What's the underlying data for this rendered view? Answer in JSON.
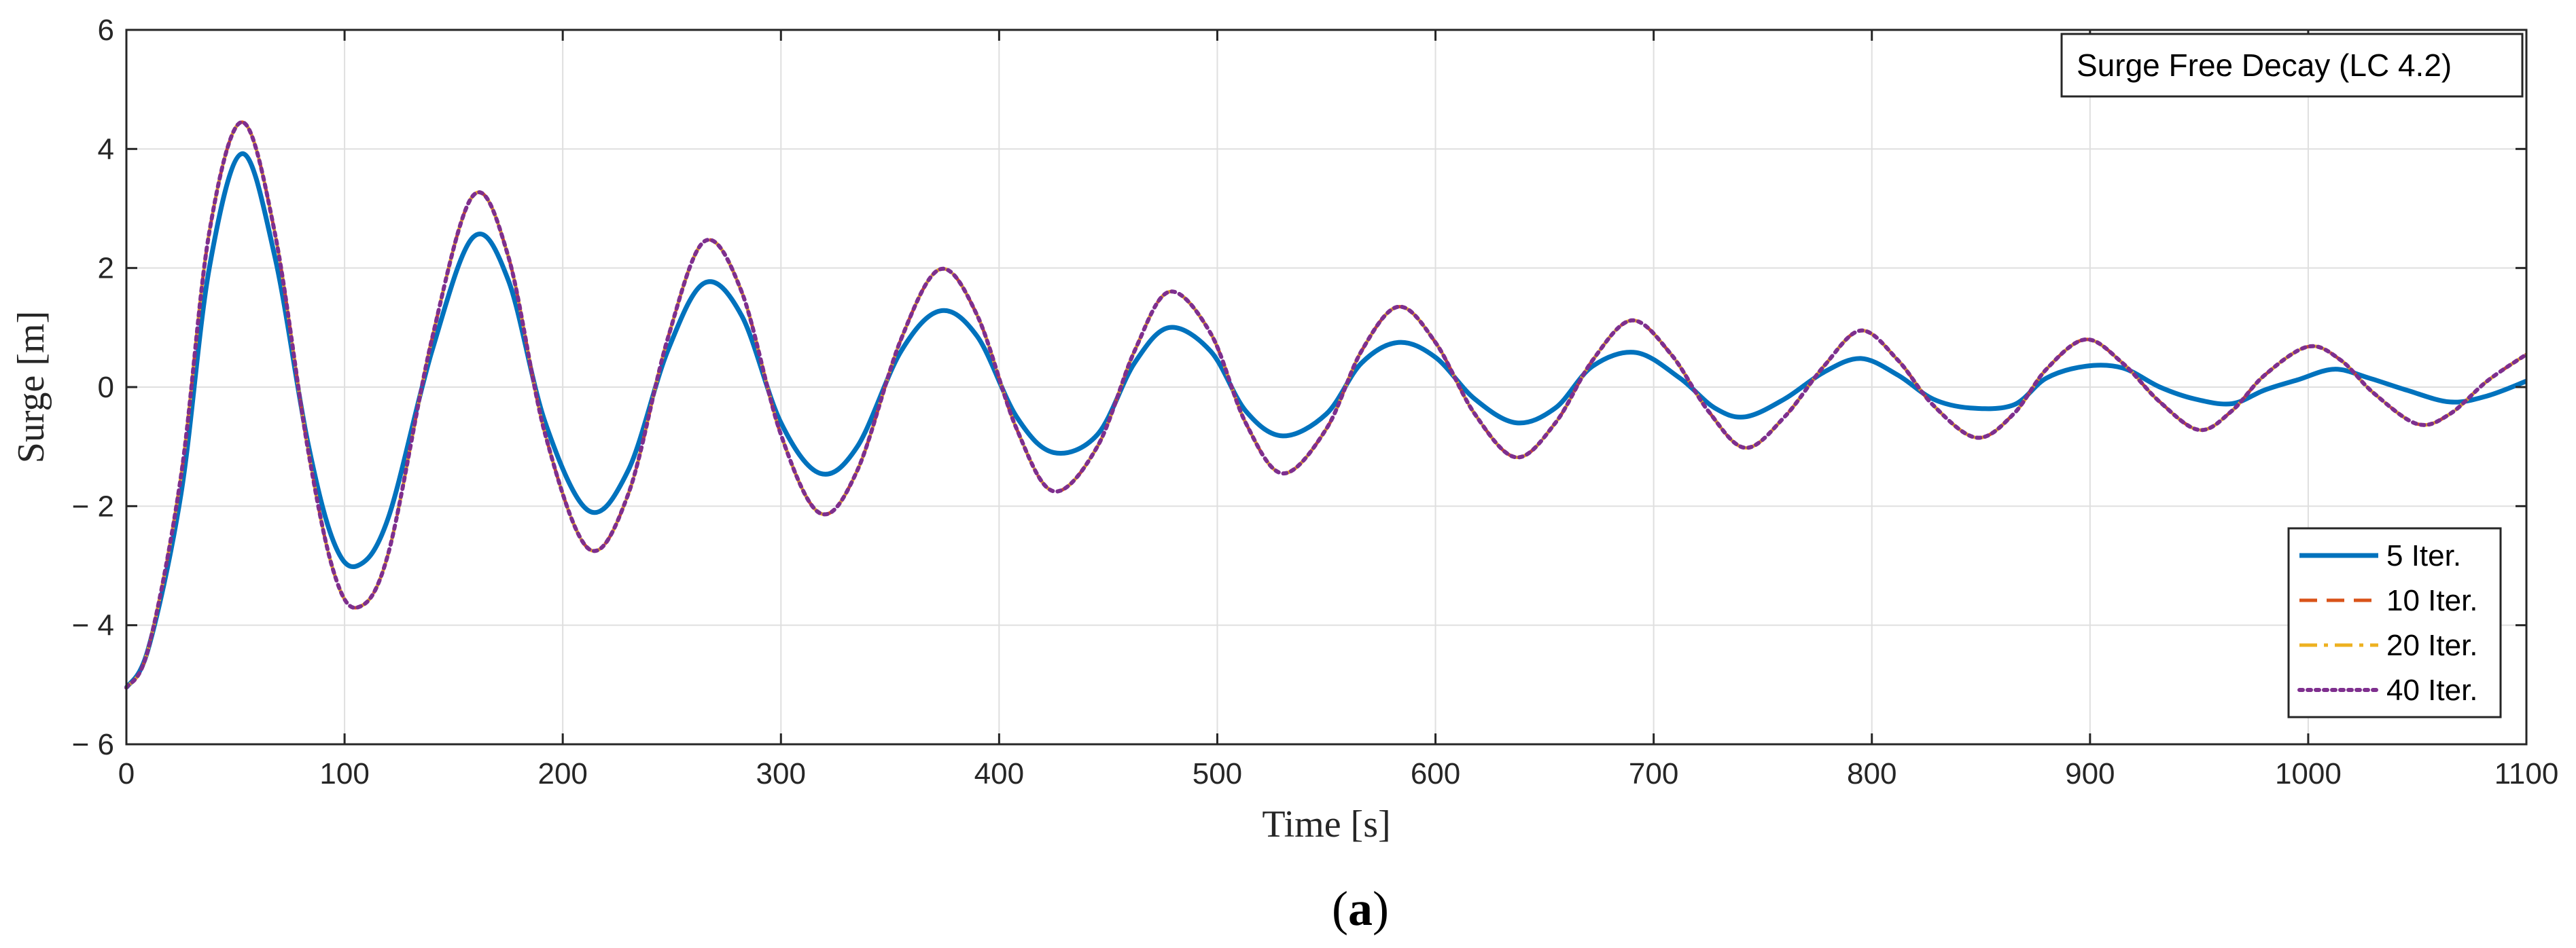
{
  "chart_data": {
    "type": "line",
    "title": "Surge Free Decay (LC 4.2)",
    "xlabel": "Time [s]",
    "ylabel": "Surge [m]",
    "xlim": [
      0,
      1100
    ],
    "ylim": [
      -6,
      6
    ],
    "xticks": [
      0,
      100,
      200,
      300,
      400,
      500,
      600,
      700,
      800,
      900,
      1000,
      1100
    ],
    "yticks": [
      6,
      4,
      2,
      0,
      -2,
      -4,
      -6
    ],
    "ytick_labels": [
      "6",
      "4",
      "2",
      "0",
      "− 2",
      "− 4",
      "− 6"
    ],
    "grid": true,
    "legend_position": "bottom-right",
    "caption_open": "(",
    "caption_letter": "a",
    "caption_close": ")",
    "series": [
      {
        "name": "5 Iter.",
        "color": "#0072BD",
        "style": "solid",
        "points": [
          [
            0,
            -5.05
          ],
          [
            10,
            -4.4
          ],
          [
            25,
            -1.8
          ],
          [
            38,
            2.0
          ],
          [
            53,
            3.92
          ],
          [
            68,
            2.2
          ],
          [
            83,
            -0.9
          ],
          [
            95,
            -2.6
          ],
          [
            106,
            -3.0
          ],
          [
            120,
            -2.2
          ],
          [
            140,
            0.6
          ],
          [
            159,
            2.52
          ],
          [
            175,
            1.8
          ],
          [
            192,
            -0.6
          ],
          [
            212,
            -2.08
          ],
          [
            230,
            -1.4
          ],
          [
            248,
            0.6
          ],
          [
            265,
            1.75
          ],
          [
            282,
            1.2
          ],
          [
            300,
            -0.6
          ],
          [
            318,
            -1.45
          ],
          [
            335,
            -1.0
          ],
          [
            355,
            0.6
          ],
          [
            373,
            1.28
          ],
          [
            390,
            0.85
          ],
          [
            408,
            -0.5
          ],
          [
            425,
            -1.1
          ],
          [
            445,
            -0.8
          ],
          [
            462,
            0.4
          ],
          [
            478,
            1.0
          ],
          [
            497,
            0.6
          ],
          [
            513,
            -0.4
          ],
          [
            530,
            -0.82
          ],
          [
            550,
            -0.45
          ],
          [
            566,
            0.4
          ],
          [
            583,
            0.75
          ],
          [
            600,
            0.5
          ],
          [
            618,
            -0.2
          ],
          [
            637,
            -0.6
          ],
          [
            655,
            -0.35
          ],
          [
            672,
            0.35
          ],
          [
            692,
            0.58
          ],
          [
            712,
            0.15
          ],
          [
            728,
            -0.35
          ],
          [
            742,
            -0.5
          ],
          [
            760,
            -0.2
          ],
          [
            778,
            0.25
          ],
          [
            795,
            0.48
          ],
          [
            812,
            0.2
          ],
          [
            828,
            -0.2
          ],
          [
            845,
            -0.35
          ],
          [
            865,
            -0.3
          ],
          [
            880,
            0.15
          ],
          [
            898,
            0.35
          ],
          [
            915,
            0.32
          ],
          [
            932,
            0.0
          ],
          [
            948,
            -0.2
          ],
          [
            965,
            -0.28
          ],
          [
            980,
            -0.05
          ],
          [
            995,
            0.12
          ],
          [
            1012,
            0.3
          ],
          [
            1028,
            0.15
          ],
          [
            1045,
            -0.05
          ],
          [
            1065,
            -0.25
          ],
          [
            1082,
            -0.15
          ],
          [
            1100,
            0.1
          ]
        ]
      },
      {
        "name": "10 Iter.",
        "color": "#D95319",
        "style": "dashed",
        "points": [
          [
            0,
            -5.05
          ],
          [
            10,
            -4.4
          ],
          [
            25,
            -1.5
          ],
          [
            38,
            2.6
          ],
          [
            53,
            4.45
          ],
          [
            68,
            2.6
          ],
          [
            83,
            -1.0
          ],
          [
            95,
            -3.1
          ],
          [
            106,
            -3.7
          ],
          [
            120,
            -2.8
          ],
          [
            140,
            0.8
          ],
          [
            159,
            3.22
          ],
          [
            175,
            2.2
          ],
          [
            192,
            -0.8
          ],
          [
            212,
            -2.72
          ],
          [
            230,
            -1.8
          ],
          [
            248,
            0.8
          ],
          [
            265,
            2.45
          ],
          [
            282,
            1.6
          ],
          [
            300,
            -0.8
          ],
          [
            318,
            -2.12
          ],
          [
            335,
            -1.4
          ],
          [
            355,
            0.8
          ],
          [
            373,
            1.98
          ],
          [
            390,
            1.2
          ],
          [
            408,
            -0.7
          ],
          [
            425,
            -1.75
          ],
          [
            445,
            -1.0
          ],
          [
            462,
            0.6
          ],
          [
            478,
            1.6
          ],
          [
            497,
            0.9
          ],
          [
            513,
            -0.6
          ],
          [
            530,
            -1.45
          ],
          [
            550,
            -0.7
          ],
          [
            566,
            0.6
          ],
          [
            583,
            1.35
          ],
          [
            600,
            0.75
          ],
          [
            618,
            -0.45
          ],
          [
            637,
            -1.18
          ],
          [
            655,
            -0.6
          ],
          [
            672,
            0.45
          ],
          [
            690,
            1.12
          ],
          [
            708,
            0.55
          ],
          [
            725,
            -0.4
          ],
          [
            742,
            -1.02
          ],
          [
            760,
            -0.5
          ],
          [
            778,
            0.35
          ],
          [
            795,
            0.95
          ],
          [
            812,
            0.45
          ],
          [
            828,
            -0.3
          ],
          [
            848,
            -0.85
          ],
          [
            865,
            -0.45
          ],
          [
            880,
            0.3
          ],
          [
            898,
            0.8
          ],
          [
            915,
            0.4
          ],
          [
            932,
            -0.25
          ],
          [
            950,
            -0.72
          ],
          [
            965,
            -0.4
          ],
          [
            980,
            0.2
          ],
          [
            1000,
            0.68
          ],
          [
            1015,
            0.45
          ],
          [
            1030,
            -0.1
          ],
          [
            1050,
            -0.62
          ],
          [
            1065,
            -0.45
          ],
          [
            1082,
            0.1
          ],
          [
            1100,
            0.55
          ]
        ]
      },
      {
        "name": "20 Iter.",
        "color": "#EDB120",
        "style": "dashdot",
        "points": [
          [
            0,
            -5.05
          ],
          [
            10,
            -4.4
          ],
          [
            25,
            -1.5
          ],
          [
            38,
            2.6
          ],
          [
            53,
            4.45
          ],
          [
            68,
            2.6
          ],
          [
            83,
            -1.0
          ],
          [
            95,
            -3.1
          ],
          [
            106,
            -3.7
          ],
          [
            120,
            -2.8
          ],
          [
            140,
            0.8
          ],
          [
            159,
            3.22
          ],
          [
            175,
            2.2
          ],
          [
            192,
            -0.8
          ],
          [
            212,
            -2.72
          ],
          [
            230,
            -1.8
          ],
          [
            248,
            0.8
          ],
          [
            265,
            2.45
          ],
          [
            282,
            1.6
          ],
          [
            300,
            -0.8
          ],
          [
            318,
            -2.12
          ],
          [
            335,
            -1.4
          ],
          [
            355,
            0.8
          ],
          [
            373,
            1.98
          ],
          [
            390,
            1.2
          ],
          [
            408,
            -0.7
          ],
          [
            425,
            -1.75
          ],
          [
            445,
            -1.0
          ],
          [
            462,
            0.6
          ],
          [
            478,
            1.6
          ],
          [
            497,
            0.9
          ],
          [
            513,
            -0.6
          ],
          [
            530,
            -1.45
          ],
          [
            550,
            -0.7
          ],
          [
            566,
            0.6
          ],
          [
            583,
            1.35
          ],
          [
            600,
            0.75
          ],
          [
            618,
            -0.45
          ],
          [
            637,
            -1.18
          ],
          [
            655,
            -0.6
          ],
          [
            672,
            0.45
          ],
          [
            690,
            1.12
          ],
          [
            708,
            0.55
          ],
          [
            725,
            -0.4
          ],
          [
            742,
            -1.02
          ],
          [
            760,
            -0.5
          ],
          [
            778,
            0.35
          ],
          [
            795,
            0.95
          ],
          [
            812,
            0.45
          ],
          [
            828,
            -0.3
          ],
          [
            848,
            -0.85
          ],
          [
            865,
            -0.45
          ],
          [
            880,
            0.3
          ],
          [
            898,
            0.8
          ],
          [
            915,
            0.4
          ],
          [
            932,
            -0.25
          ],
          [
            950,
            -0.72
          ],
          [
            965,
            -0.4
          ],
          [
            980,
            0.2
          ],
          [
            1000,
            0.68
          ],
          [
            1015,
            0.45
          ],
          [
            1030,
            -0.1
          ],
          [
            1050,
            -0.62
          ],
          [
            1065,
            -0.45
          ],
          [
            1082,
            0.1
          ],
          [
            1100,
            0.55
          ]
        ]
      },
      {
        "name": "40 Iter.",
        "color": "#7E2F8E",
        "style": "dotted",
        "points": [
          [
            0,
            -5.05
          ],
          [
            10,
            -4.4
          ],
          [
            25,
            -1.5
          ],
          [
            38,
            2.6
          ],
          [
            53,
            4.45
          ],
          [
            68,
            2.6
          ],
          [
            83,
            -1.0
          ],
          [
            95,
            -3.1
          ],
          [
            106,
            -3.7
          ],
          [
            120,
            -2.8
          ],
          [
            140,
            0.8
          ],
          [
            159,
            3.22
          ],
          [
            175,
            2.2
          ],
          [
            192,
            -0.8
          ],
          [
            212,
            -2.72
          ],
          [
            230,
            -1.8
          ],
          [
            248,
            0.8
          ],
          [
            265,
            2.45
          ],
          [
            282,
            1.6
          ],
          [
            300,
            -0.8
          ],
          [
            318,
            -2.12
          ],
          [
            335,
            -1.4
          ],
          [
            355,
            0.8
          ],
          [
            373,
            1.98
          ],
          [
            390,
            1.2
          ],
          [
            408,
            -0.7
          ],
          [
            425,
            -1.75
          ],
          [
            445,
            -1.0
          ],
          [
            462,
            0.6
          ],
          [
            478,
            1.6
          ],
          [
            497,
            0.9
          ],
          [
            513,
            -0.6
          ],
          [
            530,
            -1.45
          ],
          [
            550,
            -0.7
          ],
          [
            566,
            0.6
          ],
          [
            583,
            1.35
          ],
          [
            600,
            0.75
          ],
          [
            618,
            -0.45
          ],
          [
            637,
            -1.18
          ],
          [
            655,
            -0.6
          ],
          [
            672,
            0.45
          ],
          [
            690,
            1.12
          ],
          [
            708,
            0.55
          ],
          [
            725,
            -0.4
          ],
          [
            742,
            -1.02
          ],
          [
            760,
            -0.5
          ],
          [
            778,
            0.35
          ],
          [
            795,
            0.95
          ],
          [
            812,
            0.45
          ],
          [
            828,
            -0.3
          ],
          [
            848,
            -0.85
          ],
          [
            865,
            -0.45
          ],
          [
            880,
            0.3
          ],
          [
            898,
            0.8
          ],
          [
            915,
            0.4
          ],
          [
            932,
            -0.25
          ],
          [
            950,
            -0.72
          ],
          [
            965,
            -0.4
          ],
          [
            980,
            0.2
          ],
          [
            1000,
            0.68
          ],
          [
            1015,
            0.45
          ],
          [
            1030,
            -0.1
          ],
          [
            1050,
            -0.62
          ],
          [
            1065,
            -0.45
          ],
          [
            1082,
            0.1
          ],
          [
            1100,
            0.55
          ]
        ]
      }
    ]
  }
}
